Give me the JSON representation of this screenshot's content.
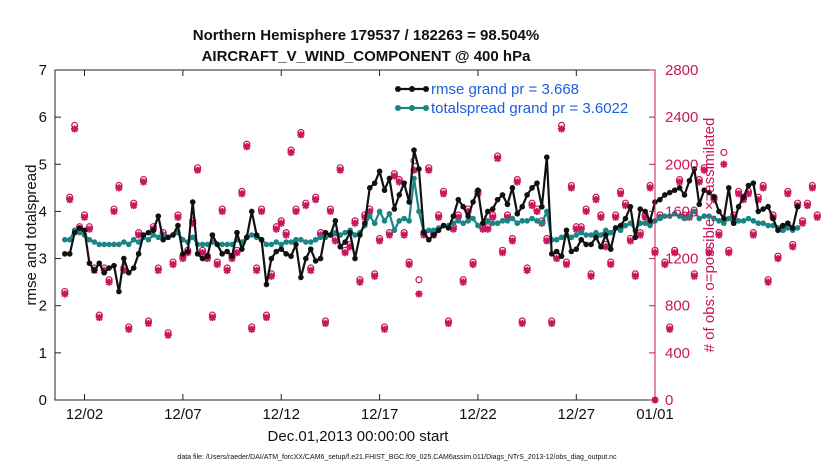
{
  "chart_data": {
    "type": "line",
    "title_line1": "Northern Hemisphere 179537 / 182263 = 98.504%",
    "title_line2": "AIRCRAFT_V_WIND_COMPONENT @ 400 hPa",
    "xlabel": "Dec.01,2013 00:00:00 start",
    "ylabel": "rmse and totalspread",
    "ylabel_right": "# of obs: o=possible; ×=assimilated",
    "footnote": "data file: /Users/raeder/DAI/ATM_forcXX/CAM6_setup/f.e21.FHIST_BGC.f09_025.CAM6assim.011/Diags_NTrS_2013-12/obs_diag_output.nc",
    "x_range": [
      0.5,
      31.0
    ],
    "ylim": [
      0,
      7
    ],
    "ylim_right": [
      0,
      2800
    ],
    "colors": {
      "rmse": "#111111",
      "spread": "#1a8585",
      "obs": "#c8175d",
      "legend_text": "#1a5fe0"
    },
    "x_ticks": [
      {
        "value": 2,
        "label": "12/02"
      },
      {
        "value": 7,
        "label": "12/07"
      },
      {
        "value": 12,
        "label": "12/12"
      },
      {
        "value": 17,
        "label": "12/17"
      },
      {
        "value": 22,
        "label": "12/22"
      },
      {
        "value": 27,
        "label": "12/27"
      },
      {
        "value": 31,
        "label": "01/01"
      }
    ],
    "y_ticks_left": [
      "0",
      "1",
      "2",
      "3",
      "4",
      "5",
      "6",
      "7"
    ],
    "y_ticks_right": [
      "0",
      "400",
      "800",
      "1200",
      "1600",
      "2000",
      "2400",
      "2800"
    ],
    "series": [
      {
        "name": "rmse",
        "legend": "rmse grand pr = 3.668",
        "x_start": 1.0,
        "x_step": 0.25,
        "values": [
          3.1,
          3.1,
          3.55,
          3.65,
          3.6,
          2.9,
          2.75,
          2.9,
          2.7,
          2.8,
          2.85,
          2.3,
          3.0,
          2.7,
          2.8,
          3.1,
          3.5,
          3.55,
          3.6,
          3.9,
          3.4,
          3.45,
          3.5,
          3.7,
          3.1,
          3.15,
          4.2,
          3.1,
          3.0,
          3.05,
          3.5,
          3.3,
          3.1,
          3.15,
          3.05,
          3.55,
          3.2,
          3.45,
          4.0,
          3.5,
          3.4,
          2.45,
          3.0,
          3.15,
          3.2,
          3.1,
          3.05,
          3.3,
          2.6,
          3.0,
          3.2,
          2.95,
          3.0,
          3.55,
          3.5,
          3.8,
          3.25,
          3.35,
          3.55,
          3.0,
          3.5,
          3.75,
          4.5,
          4.6,
          4.85,
          4.45,
          4.7,
          4.05,
          4.35,
          4.6,
          4.2,
          5.3,
          4.9,
          3.55,
          3.4,
          3.5,
          3.6,
          3.7,
          3.65,
          3.9,
          4.25,
          4.1,
          3.9,
          4.2,
          4.45,
          3.75,
          4.0,
          4.05,
          4.25,
          4.35,
          4.15,
          4.5,
          3.95,
          4.1,
          4.35,
          4.5,
          4.6,
          4.1,
          5.15,
          3.1,
          3.15,
          3.05,
          3.6,
          3.15,
          3.2,
          3.4,
          3.3,
          3.3,
          3.45,
          3.25,
          3.5,
          3.2,
          3.65,
          3.7,
          3.85,
          4.1,
          3.45,
          4.05,
          4.0,
          3.8,
          4.2,
          4.25,
          4.35,
          4.4,
          4.45,
          4.5,
          4.35,
          4.65,
          4.9,
          4.15,
          4.45,
          4.4,
          4.3,
          4.0,
          3.85,
          4.5,
          3.75,
          4.1,
          4.3,
          4.55,
          4.6,
          4.0,
          4.05,
          4.1,
          3.85,
          3.6,
          3.7,
          3.75,
          3.65,
          4.1
        ],
        "marker": "filled-circle"
      },
      {
        "name": "totalspread",
        "legend": "totalspread grand pr = 3.6022",
        "x_start": 1.0,
        "x_step": 0.25,
        "values": [
          3.4,
          3.4,
          3.6,
          3.55,
          3.5,
          3.4,
          3.35,
          3.3,
          3.3,
          3.3,
          3.3,
          3.3,
          3.35,
          3.3,
          3.4,
          3.35,
          3.45,
          3.4,
          3.5,
          3.45,
          3.5,
          3.45,
          3.5,
          3.55,
          3.4,
          3.35,
          3.45,
          3.3,
          3.3,
          3.3,
          3.35,
          3.3,
          3.3,
          3.3,
          3.3,
          3.4,
          3.35,
          3.45,
          3.5,
          3.45,
          3.4,
          3.3,
          3.3,
          3.35,
          3.3,
          3.35,
          3.35,
          3.4,
          3.4,
          3.35,
          3.35,
          3.4,
          3.45,
          3.45,
          3.5,
          3.55,
          3.5,
          3.55,
          3.6,
          3.5,
          3.55,
          3.7,
          3.9,
          3.75,
          4.0,
          3.8,
          3.95,
          3.6,
          3.8,
          3.85,
          3.8,
          4.7,
          4.0,
          3.55,
          3.6,
          3.6,
          3.65,
          3.7,
          3.7,
          3.75,
          3.8,
          3.75,
          3.8,
          3.85,
          3.7,
          3.75,
          3.8,
          3.75,
          3.75,
          3.8,
          3.8,
          3.85,
          3.75,
          3.8,
          3.8,
          3.85,
          3.8,
          3.75,
          4.0,
          3.4,
          3.4,
          3.45,
          3.5,
          3.45,
          3.5,
          3.55,
          3.5,
          3.5,
          3.55,
          3.5,
          3.6,
          3.55,
          3.65,
          3.6,
          3.7,
          3.75,
          3.6,
          3.75,
          3.75,
          3.7,
          3.8,
          3.85,
          3.9,
          3.9,
          3.95,
          3.9,
          3.85,
          3.9,
          4.0,
          3.85,
          3.9,
          3.9,
          3.85,
          3.8,
          3.75,
          3.85,
          3.75,
          3.8,
          3.8,
          3.85,
          3.8,
          3.75,
          3.75,
          3.7,
          3.7,
          3.65,
          3.6,
          3.65,
          3.6,
          3.65
        ],
        "marker": "filled-circle"
      },
      {
        "name": "obs_assimilated",
        "axis": "right",
        "x_start": 1.0,
        "x_step": 0.25,
        "values": [
          900,
          1700,
          2300,
          1450,
          1550,
          1450,
          1100,
          700,
          1100,
          1000,
          1600,
          1800,
          1100,
          600,
          1650,
          1400,
          1850,
          650,
          1450,
          1100,
          1400,
          550,
          1150,
          1550,
          1200,
          1250,
          1500,
          1950,
          1250,
          1200,
          700,
          1150,
          1600,
          1100,
          1200,
          1250,
          1750,
          2150,
          600,
          1100,
          1600,
          700,
          1050,
          1450,
          1500,
          1400,
          2100,
          1600,
          2250,
          1650,
          1100,
          1700,
          1400,
          650,
          1600,
          1350,
          1950,
          1250,
          1300,
          1500,
          1000,
          1550,
          1600,
          1050,
          1350,
          600,
          1400,
          1900,
          1850,
          1400,
          1150,
          1950,
          900,
          1400,
          1950,
          1400,
          1550,
          1750,
          650,
          1450,
          1550,
          1000,
          1600,
          1150,
          1750,
          1450,
          1450,
          1550,
          2050,
          1250,
          1550,
          1350,
          1850,
          650,
          1100,
          1650,
          1600,
          1500,
          1350,
          650,
          1200,
          2300,
          1150,
          1800,
          1450,
          1450,
          1600,
          1050,
          1700,
          1550,
          1300,
          1150,
          1550,
          1750,
          1650,
          1350,
          1050,
          1400,
          1550,
          1800,
          1250,
          1550,
          1150,
          600,
          1250,
          1850,
          1550,
          1550,
          1050,
          1850,
          1950,
          1250,
          1700,
          1400,
          2000,
          1250,
          1550,
          1750,
          1700,
          1750,
          1400,
          1700,
          1800,
          1000,
          1550,
          1200,
          1450,
          1750,
          1300,
          1650,
          1500,
          1650,
          1800,
          1550
        ],
        "marker": "asterisk"
      },
      {
        "name": "obs_possible",
        "axis": "right",
        "x_start": 1.0,
        "x_step": 0.25,
        "values": [
          920,
          1720,
          2330,
          1470,
          1570,
          1470,
          1120,
          720,
          1120,
          1020,
          1620,
          1820,
          1120,
          620,
          1670,
          1420,
          1870,
          670,
          1470,
          1120,
          1420,
          570,
          1170,
          1570,
          1220,
          1270,
          1520,
          1970,
          1270,
          1220,
          720,
          1170,
          1620,
          1120,
          1220,
          1270,
          1770,
          2170,
          620,
          1120,
          1620,
          720,
          1070,
          1470,
          1520,
          1420,
          2120,
          1620,
          2270,
          1670,
          1120,
          1720,
          1420,
          670,
          1620,
          1370,
          1970,
          1270,
          1320,
          1520,
          1020,
          1570,
          1620,
          1070,
          1370,
          620,
          1420,
          1920,
          1870,
          1420,
          1170,
          2030,
          1020,
          1420,
          1970,
          1420,
          1570,
          1770,
          670,
          1470,
          1570,
          1020,
          1620,
          1170,
          1770,
          1470,
          1470,
          1570,
          2070,
          1270,
          1570,
          1370,
          1870,
          670,
          1120,
          1670,
          1620,
          1520,
          1370,
          670,
          1220,
          2330,
          1170,
          1820,
          1470,
          1470,
          1620,
          1070,
          1720,
          1570,
          1320,
          1170,
          1570,
          1770,
          1670,
          1370,
          1070,
          1420,
          1570,
          1820,
          1270,
          1570,
          1170,
          620,
          1270,
          1870,
          1570,
          1570,
          1070,
          1870,
          1970,
          1270,
          1720,
          1420,
          2100,
          1270,
          1570,
          1770,
          1720,
          1770,
          1420,
          1720,
          1820,
          1020,
          1570,
          1220,
          1470,
          1770,
          1320,
          1670,
          1520,
          1670,
          1820,
          1570
        ],
        "marker": "open-circle"
      }
    ]
  }
}
